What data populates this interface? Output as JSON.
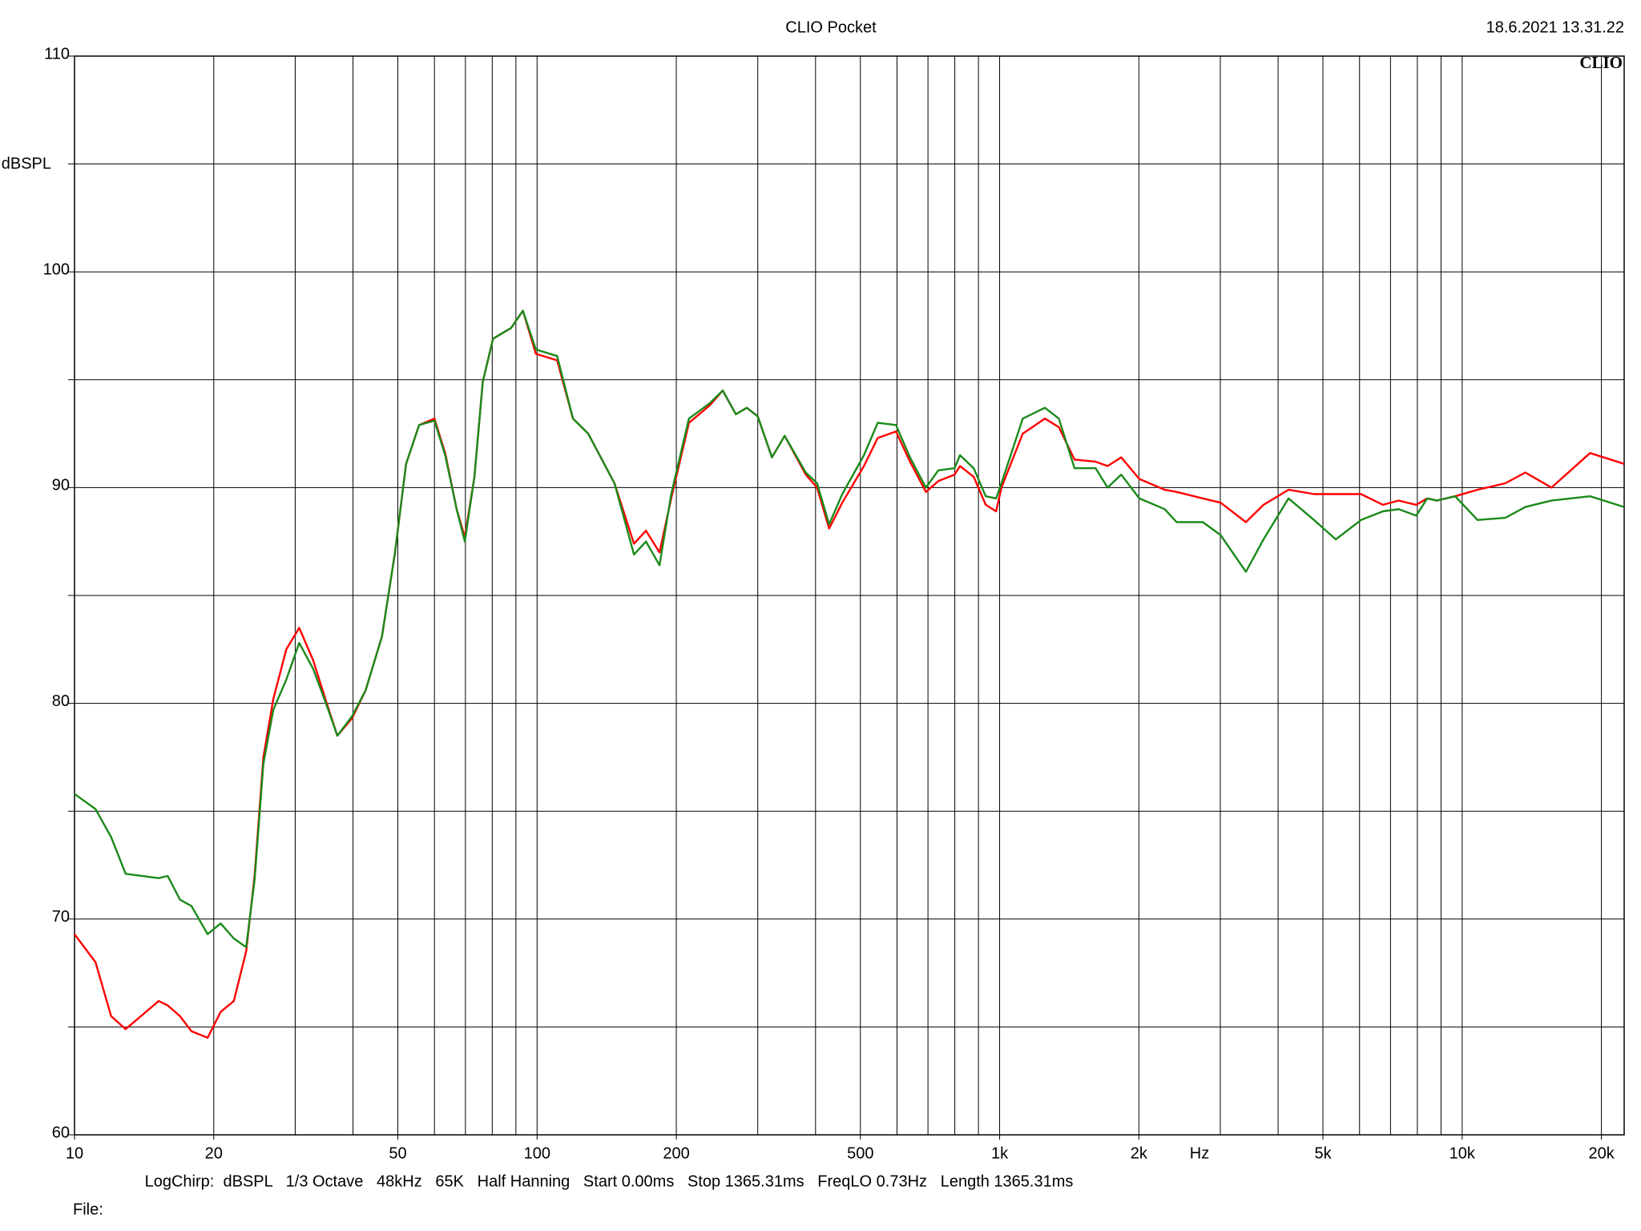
{
  "chart_data": {
    "type": "line",
    "title": "CLIO Pocket",
    "timestamp": "18.6.2021 13.31.22",
    "logo": "CLIO",
    "ylabel": "dBSPL",
    "xlabel": "Hz",
    "footer": "LogChirp:  dBSPL   1/3 Octave   48kHz   65K   Half Hanning   Start 0.00ms   Stop 1365.31ms   FreqLO 0.73Hz   Length 1365.31ms",
    "file_label": "File:",
    "xscale": "log",
    "grid": true,
    "xlim": [
      10,
      22400
    ],
    "ylim": [
      60,
      110
    ],
    "xticks": [
      10,
      20,
      50,
      100,
      200,
      500,
      {
        "value": 1000,
        "label": "1k"
      },
      {
        "value": 2000,
        "label": "2k"
      },
      {
        "value": 5000,
        "label": "5k"
      },
      {
        "value": 10000,
        "label": "10k"
      },
      {
        "value": 20000,
        "label": "20k"
      }
    ],
    "xminor": [
      30,
      40,
      60,
      70,
      80,
      90,
      300,
      400,
      600,
      700,
      800,
      900,
      3000,
      4000,
      6000,
      7000,
      8000,
      9000
    ],
    "yticks": [
      60,
      70,
      80,
      90,
      100,
      110
    ],
    "yminor": [
      65,
      75,
      85,
      95,
      105
    ],
    "x": [
      10,
      11.1,
      12,
      12.9,
      15.2,
      15.9,
      16.9,
      17.9,
      19.4,
      20.7,
      22.1,
      23.5,
      24.5,
      25.6,
      26.9,
      28.7,
      30.6,
      32.8,
      35.1,
      37,
      39.8,
      42.6,
      46.2,
      49.3,
      52.1,
      55.6,
      60,
      63.3,
      67,
      69.8,
      73.2,
      76.3,
      80.3,
      87.9,
      93.2,
      99.4,
      110.5,
      119.6,
      129,
      147,
      162,
      172,
      184,
      195,
      213,
      236,
      252,
      269,
      284,
      300,
      322,
      343,
      381,
      403,
      428,
      457,
      509,
      545,
      597,
      640,
      693,
      737,
      799,
      821,
      879,
      933,
      983,
      1009,
      1122,
      1253,
      1343,
      1452,
      1613,
      1712,
      1832,
      2005,
      2275,
      2413,
      2751,
      3004,
      3407,
      3720,
      4213,
      4783,
      5330,
      6045,
      6742,
      7286,
      7958,
      8402,
      8815,
      9653,
      10800,
      12400,
      13700,
      15600,
      18900,
      22400
    ],
    "series": [
      {
        "name": "Red",
        "color": "#ff0000",
        "values": [
          69.3,
          68.0,
          65.5,
          64.9,
          66.2,
          66.0,
          65.5,
          64.8,
          64.5,
          65.7,
          66.2,
          68.5,
          72.0,
          77.5,
          80.2,
          82.5,
          83.5,
          82.0,
          80.0,
          78.5,
          79.3,
          80.6,
          83.1,
          87.0,
          91.1,
          92.9,
          93.2,
          91.6,
          89.0,
          87.7,
          90.5,
          94.9,
          96.9,
          97.4,
          98.2,
          96.2,
          95.9,
          93.2,
          92.5,
          90.2,
          87.4,
          88.0,
          87.0,
          89.5,
          93.0,
          93.8,
          94.5,
          93.4,
          93.7,
          93.3,
          91.4,
          92.4,
          90.6,
          90.0,
          88.1,
          89.3,
          91.0,
          92.3,
          92.6,
          91.2,
          89.8,
          90.3,
          90.6,
          91.0,
          90.5,
          89.2,
          88.9,
          90.0,
          92.5,
          93.2,
          92.8,
          91.3,
          91.2,
          91.0,
          91.4,
          90.4,
          89.9,
          89.8,
          89.5,
          89.3,
          88.4,
          89.2,
          89.9,
          89.7,
          89.7,
          89.7,
          89.2,
          89.4,
          89.2,
          89.5,
          89.4,
          89.6,
          89.9,
          90.2,
          90.7,
          90.0,
          91.6,
          91.1
        ]
      },
      {
        "name": "Green",
        "color": "#1a8a1a",
        "values": [
          75.8,
          75.1,
          73.8,
          72.1,
          71.9,
          72.0,
          70.9,
          70.6,
          69.3,
          69.8,
          69.1,
          68.7,
          71.8,
          77.2,
          79.7,
          81.1,
          82.8,
          81.6,
          79.9,
          78.5,
          79.4,
          80.6,
          83.1,
          87.0,
          91.1,
          92.9,
          93.1,
          91.5,
          89.0,
          87.5,
          90.5,
          94.9,
          96.9,
          97.4,
          98.2,
          96.4,
          96.1,
          93.2,
          92.5,
          90.2,
          86.9,
          87.5,
          86.4,
          89.7,
          93.2,
          93.9,
          94.5,
          93.4,
          93.7,
          93.3,
          91.4,
          92.4,
          90.7,
          90.2,
          88.3,
          89.7,
          91.5,
          93.0,
          92.9,
          91.4,
          90.0,
          90.8,
          90.9,
          91.5,
          90.9,
          89.6,
          89.5,
          90.2,
          93.2,
          93.7,
          93.2,
          90.9,
          90.9,
          90.0,
          90.6,
          89.5,
          89.0,
          88.4,
          88.4,
          87.8,
          86.1,
          87.6,
          89.5,
          88.5,
          87.6,
          88.5,
          88.9,
          89.0,
          88.7,
          89.5,
          89.4,
          89.6,
          88.5,
          88.6,
          89.1,
          89.4,
          89.6,
          89.1
        ]
      }
    ]
  }
}
